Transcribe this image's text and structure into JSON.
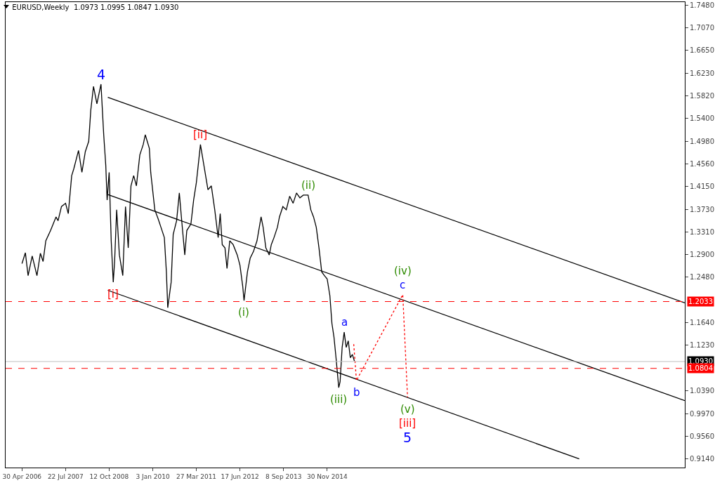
{
  "chart_data": {
    "type": "line",
    "title": "EURUSD,Weekly  1.0973 1.0995 1.0847 1.0930",
    "series": [
      {
        "color": "#000000",
        "x": [
          "2006-04-30",
          "2006-06-04",
          "2006-07-02",
          "2006-08-13",
          "2006-10-01",
          "2006-11-05",
          "2006-12-03",
          "2006-12-31",
          "2007-02-18",
          "2007-04-15",
          "2007-05-06",
          "2007-06-10",
          "2007-07-22",
          "2007-08-19",
          "2007-09-23",
          "2007-10-14",
          "2007-12-02",
          "2008-01-06",
          "2008-02-10",
          "2008-03-16",
          "2008-04-06",
          "2008-05-04",
          "2008-06-08",
          "2008-07-20",
          "2008-08-17",
          "2008-09-07",
          "2008-09-21",
          "2008-10-12",
          "2008-11-02",
          "2008-11-23",
          "2008-12-07",
          "2008-12-28",
          "2009-01-25",
          "2009-03-01",
          "2009-03-29",
          "2009-04-26",
          "2009-05-24",
          "2009-06-21",
          "2009-07-19",
          "2009-08-23",
          "2009-09-27",
          "2009-10-18",
          "2009-11-29",
          "2009-12-13",
          "2010-01-24",
          "2010-02-28",
          "2010-03-28",
          "2010-05-02",
          "2010-05-23",
          "2010-06-06",
          "2010-07-11",
          "2010-08-01",
          "2010-09-05",
          "2010-10-03",
          "2010-10-24",
          "2010-11-28",
          "2010-12-19",
          "2011-01-30",
          "2011-02-27",
          "2011-03-27",
          "2011-05-08",
          "2011-06-19",
          "2011-07-24",
          "2011-08-28",
          "2011-10-02",
          "2011-11-06",
          "2011-11-27",
          "2011-12-18",
          "2012-01-15",
          "2012-02-05",
          "2012-03-04",
          "2012-04-08",
          "2012-05-20",
          "2012-06-17",
          "2012-07-15",
          "2012-07-29",
          "2012-09-02",
          "2012-09-30",
          "2012-11-04",
          "2012-12-09",
          "2013-01-20",
          "2013-02-10",
          "2013-03-10",
          "2013-04-14",
          "2013-05-05",
          "2013-06-02",
          "2013-07-07",
          "2013-07-28",
          "2013-09-01",
          "2013-10-06",
          "2013-11-10",
          "2013-12-15",
          "2014-01-19",
          "2014-02-23",
          "2014-03-30",
          "2014-05-18",
          "2014-06-15",
          "2014-07-13",
          "2014-08-10",
          "2014-09-07",
          "2014-10-05",
          "2014-11-02",
          "2014-11-30",
          "2014-12-28",
          "2015-01-18",
          "2015-02-08",
          "2015-03-01",
          "2015-03-29",
          "2015-04-12",
          "2015-05-03",
          "2015-05-24",
          "2015-06-14",
          "2015-07-05",
          "2015-07-26",
          "2015-08-16",
          "2015-09-06"
        ],
        "values": [
          1.273,
          1.293,
          1.251,
          1.287,
          1.251,
          1.292,
          1.277,
          1.315,
          1.334,
          1.359,
          1.352,
          1.378,
          1.384,
          1.365,
          1.435,
          1.447,
          1.481,
          1.441,
          1.479,
          1.498,
          1.555,
          1.599,
          1.567,
          1.603,
          1.51,
          1.454,
          1.39,
          1.441,
          1.315,
          1.239,
          1.277,
          1.372,
          1.289,
          1.251,
          1.378,
          1.302,
          1.416,
          1.435,
          1.416,
          1.473,
          1.492,
          1.51,
          1.485,
          1.441,
          1.372,
          1.355,
          1.34,
          1.321,
          1.258,
          1.192,
          1.239,
          1.327,
          1.352,
          1.403,
          1.359,
          1.289,
          1.334,
          1.346,
          1.39,
          1.422,
          1.492,
          1.447,
          1.409,
          1.416,
          1.372,
          1.321,
          1.365,
          1.308,
          1.302,
          1.264,
          1.315,
          1.308,
          1.289,
          1.27,
          1.232,
          1.205,
          1.258,
          1.283,
          1.296,
          1.315,
          1.359,
          1.34,
          1.302,
          1.289,
          1.308,
          1.321,
          1.34,
          1.359,
          1.378,
          1.372,
          1.397,
          1.384,
          1.403,
          1.394,
          1.399,
          1.399,
          1.372,
          1.359,
          1.34,
          1.302,
          1.258,
          1.251,
          1.245,
          1.214,
          1.163,
          1.138,
          1.1,
          1.045,
          1.056,
          1.119,
          1.147,
          1.119,
          1.131,
          1.1,
          1.106,
          1.094
        ]
      },
      {
        "color": "#000000",
        "x": [
          "2008-09-28",
          "2024-12-22"
        ],
        "values": [
          1.579,
          1.201
        ]
      },
      {
        "color": "#000000",
        "x": [
          "2008-09-28",
          "2024-12-22"
        ],
        "values": [
          1.4,
          1.021
        ]
      },
      {
        "color": "#000000",
        "x": [
          "2008-09-28",
          "2022-01-02"
        ],
        "values": [
          1.224,
          0.914
        ]
      },
      {
        "color": "#ff0000",
        "line_style": "dotted",
        "x": [
          "2015-08-30",
          "2015-09-27",
          "2017-01-15",
          "2017-03-05"
        ],
        "values": [
          1.125,
          1.058,
          1.216,
          1.027
        ]
      }
    ],
    "xlim": [
      "2005-11-13",
      "2024-12-22"
    ],
    "xticks": [
      {
        "value": "2006-04-30",
        "label": "30 Apr 2006"
      },
      {
        "value": "2007-07-22",
        "label": "22 Jul 2007"
      },
      {
        "value": "2008-10-12",
        "label": "12 Oct 2008"
      },
      {
        "value": "2010-01-03",
        "label": "3 Jan 2010"
      },
      {
        "value": "2011-03-27",
        "label": "27 Mar 2011"
      },
      {
        "value": "2012-06-17",
        "label": "17 Jun 2012"
      },
      {
        "value": "2013-09-08",
        "label": "8 Sep 2013"
      },
      {
        "value": "2014-11-30",
        "label": "30 Nov 2014"
      }
    ],
    "ylim": [
      0.898,
      1.754
    ],
    "yticks": [
      {
        "value": 1.748,
        "label": "1.7480"
      },
      {
        "value": 1.707,
        "label": "1.7070"
      },
      {
        "value": 1.665,
        "label": "1.6650"
      },
      {
        "value": 1.623,
        "label": "1.6230"
      },
      {
        "value": 1.582,
        "label": "1.5820"
      },
      {
        "value": 1.54,
        "label": "1.5400"
      },
      {
        "value": 1.498,
        "label": "1.4980"
      },
      {
        "value": 1.456,
        "label": "1.4560"
      },
      {
        "value": 1.415,
        "label": "1.4150"
      },
      {
        "value": 1.373,
        "label": "1.3730"
      },
      {
        "value": 1.331,
        "label": "1.3310"
      },
      {
        "value": 1.29,
        "label": "1.2900"
      },
      {
        "value": 1.248,
        "label": "1.2480"
      },
      {
        "value": 1.164,
        "label": "1.1640"
      },
      {
        "value": 1.123,
        "label": "1.1230"
      },
      {
        "value": 1.039,
        "label": "1.0390"
      },
      {
        "value": 0.997,
        "label": "0.9970"
      },
      {
        "value": 0.956,
        "label": "0.9560"
      },
      {
        "value": 0.914,
        "label": "0.9140"
      }
    ],
    "ref_lines": [
      {
        "axis": "y",
        "value": 1.2033,
        "label": "1.2033",
        "color": "#ff0000",
        "line_style": "dashed"
      },
      {
        "axis": "y",
        "value": 1.093,
        "label": "1.0930",
        "color": "#c0c0c0",
        "line_style": "solid"
      },
      {
        "axis": "y",
        "value": 1.0804,
        "label": "1.0804",
        "color": "#ff0000",
        "line_style": "dashed"
      }
    ],
    "annotations": [
      {
        "text": "4",
        "x": "2008-07-20",
        "y": 1.603
      },
      {
        "text": "[i]",
        "x": "2008-11-23",
        "y": 1.239
      },
      {
        "text": "[ii]",
        "x": "2011-05-08",
        "y": 1.492
      },
      {
        "text": "(i)",
        "x": "2012-07-29",
        "y": 1.205
      },
      {
        "text": "(ii)",
        "x": "2014-05-18",
        "y": 1.399
      },
      {
        "text": "(iii)",
        "x": "2015-03-29",
        "y": 1.045
      },
      {
        "text": "a",
        "x": "2015-05-24",
        "y": 1.147
      },
      {
        "text": "b",
        "x": "2015-09-27",
        "y": 1.058
      },
      {
        "text": "c",
        "x": "2017-01-15",
        "y": 1.216
      },
      {
        "text": "(iv)",
        "x": "2017-01-15",
        "y": 1.216
      },
      {
        "text": "(v)",
        "x": "2017-03-05",
        "y": 1.027
      },
      {
        "text": "[iii]",
        "x": "2017-03-05",
        "y": 1.027
      },
      {
        "text": "5",
        "x": "2017-03-05",
        "y": 1.027
      }
    ],
    "grid": false,
    "marker": "none",
    "line_style": "solid"
  }
}
